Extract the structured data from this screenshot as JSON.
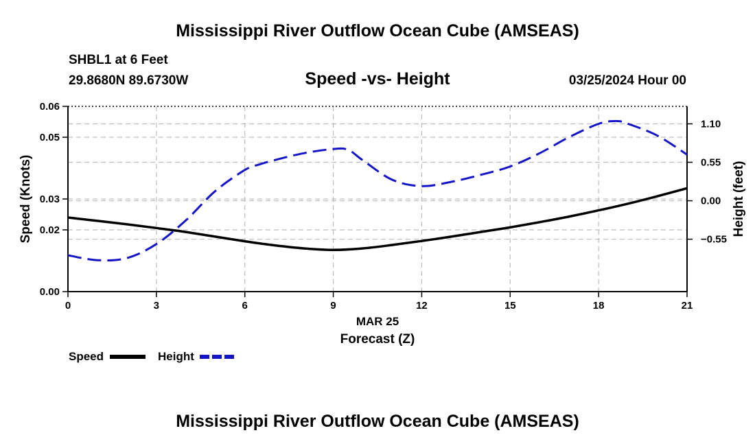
{
  "page": {
    "title": "Mississippi River Outflow Ocean Cube (AMSEAS)",
    "footer_title": "Mississippi River Outflow Ocean Cube (AMSEAS)",
    "station": "SHBL1 at 6 Feet",
    "coords": "29.8680N  89.6730W",
    "date": "03/25/2024 Hour 00"
  },
  "chart_data": {
    "type": "line",
    "title": "Speed -vs- Height",
    "xlabel_date": "MAR 25",
    "xlabel": "Forecast (Z)",
    "ylabel_left": "Speed (Knots)",
    "ylabel_right": "Height (feet)",
    "x_ticks": [
      0,
      3,
      6,
      9,
      12,
      15,
      18,
      21
    ],
    "x_tick_labels": [
      "0",
      "3",
      "6",
      "9",
      "12",
      "15",
      "18",
      "21"
    ],
    "xlim": [
      0,
      21
    ],
    "ylim_left": [
      0,
      0.06
    ],
    "ylim_right": [
      -1.3,
      1.35
    ],
    "left_ticks": [
      0,
      0.02,
      0.03,
      0.05,
      0.06
    ],
    "left_tick_labels": [
      "0.00",
      "0.02",
      "0.03",
      "0.05",
      "0.06"
    ],
    "right_ticks": [
      1.1,
      0.55,
      0.0,
      -0.55
    ],
    "right_tick_labels": [
      "1.10",
      "0.55",
      "0.00",
      "−0.55"
    ],
    "grid": true,
    "series": [
      {
        "name": "Speed",
        "axis": "left",
        "color": "#000000",
        "dashed": false,
        "x": [
          0,
          1,
          2,
          3,
          4,
          5,
          6,
          7,
          8,
          9,
          10,
          11,
          12,
          13,
          14,
          15,
          16,
          17,
          18,
          19,
          20,
          21
        ],
        "y": [
          0.024,
          0.0229,
          0.0218,
          0.0206,
          0.0193,
          0.0178,
          0.0163,
          0.015,
          0.014,
          0.0135,
          0.014,
          0.0151,
          0.0164,
          0.0178,
          0.0193,
          0.0208,
          0.0225,
          0.0243,
          0.0263,
          0.0285,
          0.0309,
          0.0335
        ]
      },
      {
        "name": "Height",
        "axis": "right",
        "color": "#1515c8",
        "dashed": true,
        "x": [
          0,
          1,
          2,
          3,
          4,
          5,
          6,
          6.5,
          7,
          8,
          9,
          9.5,
          10,
          11,
          12,
          13,
          14,
          15,
          16,
          17,
          18,
          18.6,
          19,
          20,
          21
        ],
        "y": [
          -0.78,
          -0.85,
          -0.82,
          -0.62,
          -0.28,
          0.14,
          0.44,
          0.52,
          0.58,
          0.68,
          0.74,
          0.73,
          0.58,
          0.3,
          0.21,
          0.27,
          0.37,
          0.49,
          0.68,
          0.91,
          1.1,
          1.14,
          1.1,
          0.93,
          0.66
        ]
      }
    ],
    "legend": [
      "Speed",
      "Height"
    ]
  }
}
